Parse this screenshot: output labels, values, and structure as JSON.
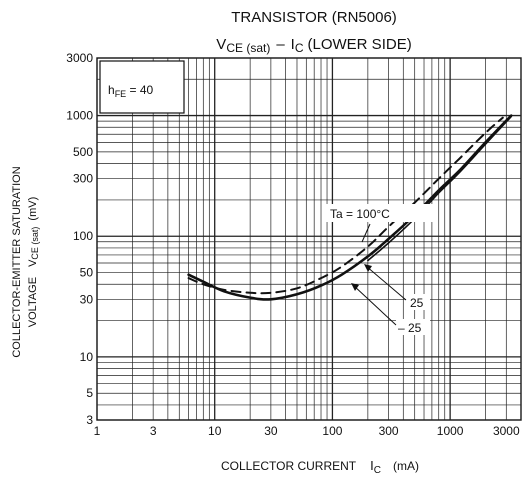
{
  "chart_data": {
    "type": "line",
    "title": "TRANSISTOR (RN5006)",
    "subtitle": {
      "v_main": "V",
      "v_sub": "CE (sat)",
      "dash": "–",
      "i_main": "I",
      "i_sub": "C",
      "rest": "(LOWER SIDE)"
    },
    "xlabel": {
      "main": "COLLECTOR CURRENT",
      "sym": "I",
      "sub": "C",
      "unit": "(mA)"
    },
    "ylabel": {
      "line1": "COLLECTOR-EMITTER SATURATION",
      "line2_a": "VOLTAGE",
      "line2_sym": "V",
      "line2_sub": "CE (sat)",
      "line2_unit": "(mV)"
    },
    "x_scale": "log",
    "y_scale": "log",
    "xlim": [
      1,
      4000
    ],
    "ylim": [
      3,
      3000
    ],
    "x_ticks": [
      {
        "value": 1,
        "label": "1"
      },
      {
        "value": 3,
        "label": "3"
      },
      {
        "value": 10,
        "label": "10"
      },
      {
        "value": 30,
        "label": "30"
      },
      {
        "value": 100,
        "label": "100"
      },
      {
        "value": 300,
        "label": "300"
      },
      {
        "value": 1000,
        "label": "1000"
      },
      {
        "value": 3000,
        "label": "3000"
      }
    ],
    "y_ticks": [
      {
        "value": 3,
        "label": "3"
      },
      {
        "value": 5,
        "label": "5"
      },
      {
        "value": 10,
        "label": "10"
      },
      {
        "value": 30,
        "label": "30"
      },
      {
        "value": 50,
        "label": "50"
      },
      {
        "value": 100,
        "label": "100"
      },
      {
        "value": 300,
        "label": "300"
      },
      {
        "value": 500,
        "label": "500"
      },
      {
        "value": 1000,
        "label": "1000"
      },
      {
        "value": 3000,
        "label": "3000"
      }
    ],
    "grid": true,
    "condition_label": {
      "main": "h",
      "sub": "FE",
      "rest": " = 40"
    },
    "series": [
      {
        "name": "Ta = 100°C",
        "style": "dashed",
        "x": [
          6,
          8,
          12,
          20,
          30,
          50,
          80,
          120,
          200,
          300,
          500,
          800,
          1200,
          2000,
          2800
        ],
        "y": [
          45,
          40,
          36,
          34,
          34,
          37,
          45,
          56,
          82,
          120,
          190,
          300,
          440,
          720,
          960
        ]
      },
      {
        "name": "25",
        "style": "solid-bold",
        "x": [
          6,
          8,
          12,
          20,
          30,
          50,
          80,
          120,
          200,
          300,
          500,
          800,
          1200,
          2000,
          3300
        ],
        "y": [
          48,
          42,
          35,
          31,
          30,
          33,
          39,
          48,
          68,
          95,
          150,
          240,
          350,
          600,
          1000
        ]
      },
      {
        "name": "– 25",
        "style": "solid",
        "x": [
          200,
          300,
          500,
          800,
          1200,
          2000,
          3300
        ],
        "y": [
          63,
          88,
          140,
          228,
          338,
          580,
          980
        ]
      }
    ],
    "annotations": [
      {
        "text": "Ta = 100°C"
      },
      {
        "text": "25"
      },
      {
        "text": "– 25"
      }
    ],
    "colors": {
      "line": "#111111",
      "grid": "#222222",
      "background": "#ffffff"
    }
  }
}
